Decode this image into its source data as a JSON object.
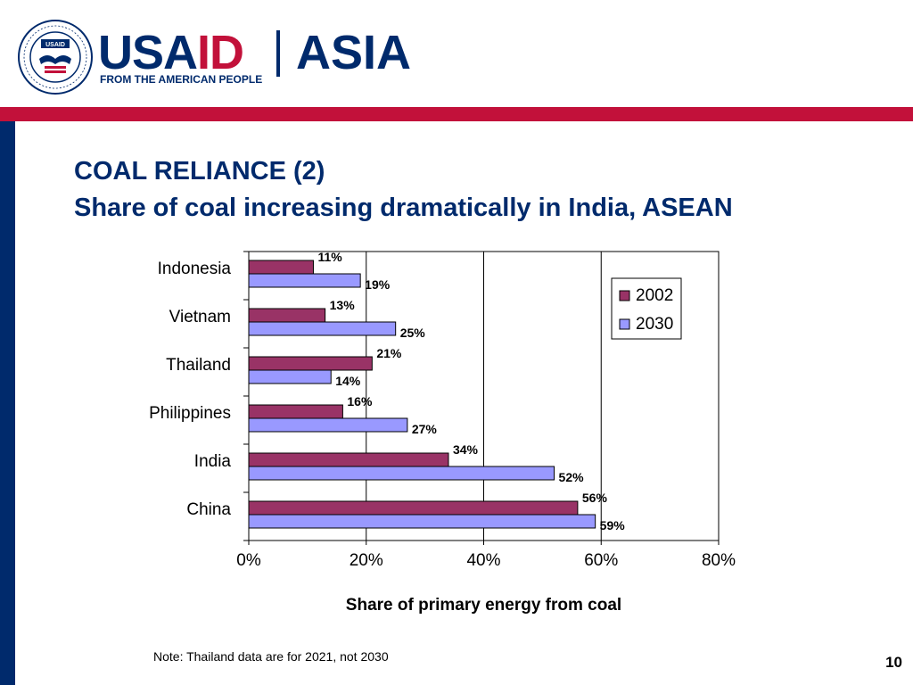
{
  "header": {
    "seal_text": "UNITED STATES AGENCY INTERNATIONAL DEVELOPMENT",
    "seal_label": "USAID",
    "brand_usa": "USA",
    "brand_id": "ID",
    "brand_asia": "ASIA",
    "tagline": "FROM THE AMERICAN PEOPLE"
  },
  "slide": {
    "title_line1": "COAL RELIANCE (2)",
    "title_line2": "Share of coal increasing dramatically in India, ASEAN",
    "note": "Note: Thailand data are for 2021, not 2030",
    "page_number": "10"
  },
  "colors": {
    "navy": "#002a6c",
    "red": "#c2113a",
    "series_2002": "#993366",
    "series_2030": "#9999ff"
  },
  "chart_data": {
    "type": "bar",
    "orientation": "horizontal",
    "categories": [
      "Indonesia",
      "Vietnam",
      "Thailand",
      "Philippines",
      "India",
      "China"
    ],
    "series": [
      {
        "name": "2002",
        "values": [
          11,
          13,
          21,
          16,
          34,
          56
        ],
        "labels": [
          "11%",
          "13%",
          "21%",
          "16%",
          "34%",
          "56%"
        ]
      },
      {
        "name": "2030",
        "values": [
          19,
          25,
          14,
          27,
          52,
          59
        ],
        "labels": [
          "19%",
          "25%",
          "14%",
          "27%",
          "52%",
          "59%"
        ]
      }
    ],
    "xlabel": "Share of primary energy from coal",
    "ylabel": "",
    "xlim": [
      0,
      80
    ],
    "xticks": [
      "0%",
      "20%",
      "40%",
      "60%",
      "80%"
    ],
    "grid": "vertical",
    "legend": "top-right"
  }
}
